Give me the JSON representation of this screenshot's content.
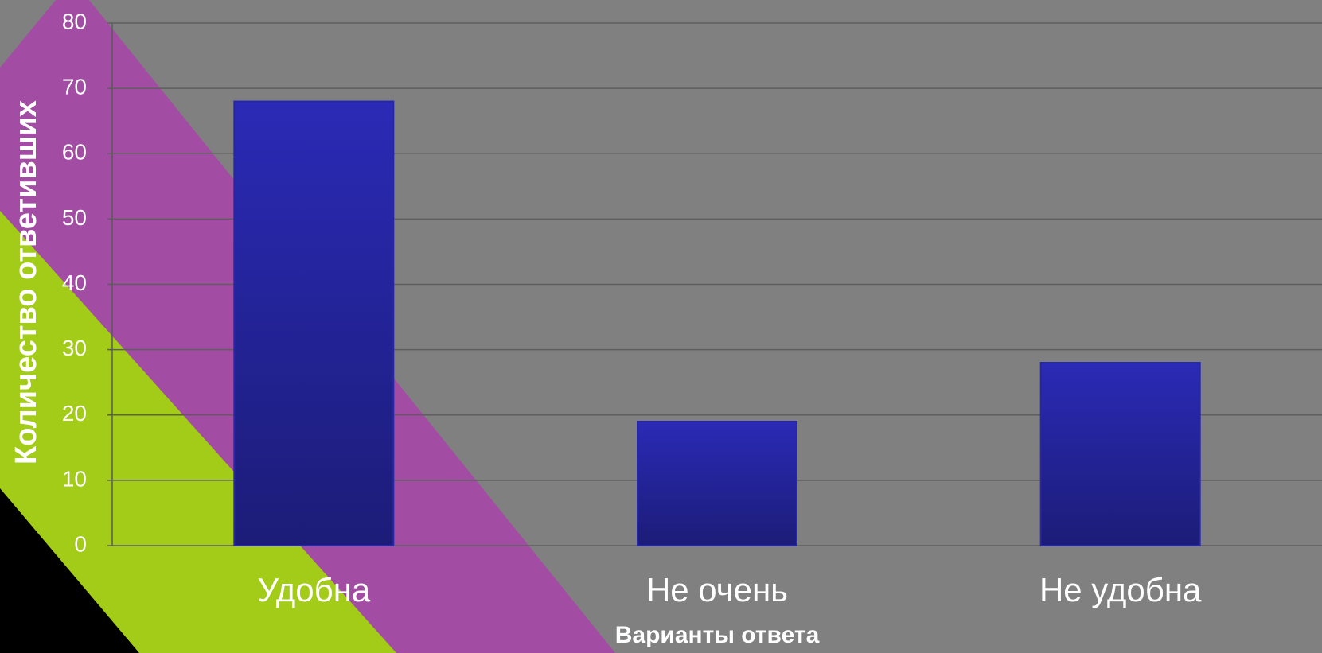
{
  "chart_data": {
    "type": "bar",
    "categories": [
      "Удобна",
      "Не очень",
      "Не удобна"
    ],
    "values": [
      68,
      19,
      28
    ],
    "color": "#2626a8",
    "ylim": [
      0,
      80
    ],
    "yticks": [
      0,
      10,
      20,
      30,
      40,
      50,
      60,
      70,
      80
    ],
    "grid": true,
    "x_label": "Варианты ответа",
    "y_label": "Количество ответивших"
  }
}
